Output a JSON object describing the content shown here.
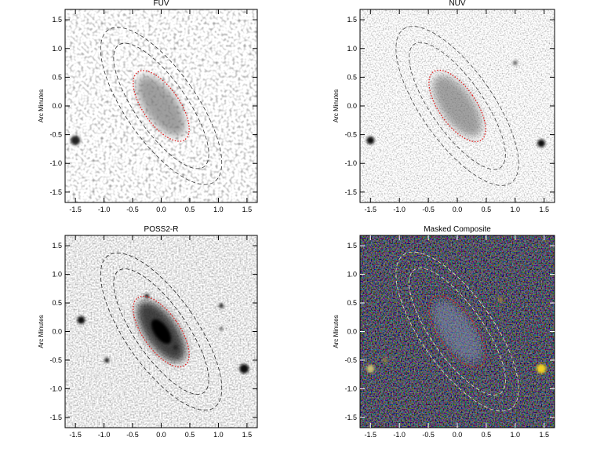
{
  "chart_data": [
    {
      "type": "image",
      "title": "FUV",
      "ylabel": "Arc Minutes",
      "xlim": [
        -1.68,
        1.68
      ],
      "ylim": [
        -1.68,
        1.68
      ],
      "xticks": [
        -1.5,
        {
          "value": -1,
          "label": "-1.0"
        },
        -0.5,
        {
          "value": 0,
          "label": "0.0"
        },
        0.5,
        {
          "value": 1,
          "label": "1.0"
        },
        1.5
      ],
      "yticks": [
        -1.5,
        {
          "value": -1,
          "label": "-1.0"
        },
        -0.5,
        {
          "value": 0,
          "label": "0.0"
        },
        0.5,
        {
          "value": 1,
          "label": "1.0"
        },
        1.5
      ]
    },
    {
      "type": "image",
      "title": "NUV",
      "ylabel": "Arc Minutes",
      "xlim": [
        -1.68,
        1.68
      ],
      "ylim": [
        -1.68,
        1.68
      ],
      "xticks": [
        -1.5,
        {
          "value": -1,
          "label": "-1.0"
        },
        -0.5,
        {
          "value": 0,
          "label": "0.0"
        },
        0.5,
        {
          "value": 1,
          "label": "1.0"
        },
        1.5
      ],
      "yticks": [
        -1.5,
        {
          "value": -1,
          "label": "-1.0"
        },
        -0.5,
        {
          "value": 0,
          "label": "0.0"
        },
        0.5,
        {
          "value": 1,
          "label": "1.0"
        },
        1.5
      ]
    },
    {
      "type": "image",
      "title": "POSS2-R",
      "ylabel": "Arc Minutes",
      "xlim": [
        -1.68,
        1.68
      ],
      "ylim": [
        -1.68,
        1.68
      ],
      "xticks": [
        -1.5,
        {
          "value": -1,
          "label": "-1.0"
        },
        -0.5,
        {
          "value": 0,
          "label": "0.0"
        },
        0.5,
        {
          "value": 1,
          "label": "1.0"
        },
        1.5
      ],
      "yticks": [
        -1.5,
        {
          "value": -1,
          "label": "-1.0"
        },
        -0.5,
        {
          "value": 0,
          "label": "0.0"
        },
        0.5,
        {
          "value": 1,
          "label": "1.0"
        },
        1.5
      ]
    },
    {
      "type": "image",
      "title": "Masked Composite",
      "ylabel": "Arc Minutes",
      "xlim": [
        -1.68,
        1.68
      ],
      "ylim": [
        -1.68,
        1.68
      ],
      "xticks": [
        -1.5,
        {
          "value": -1,
          "label": "-1.0"
        },
        -0.5,
        {
          "value": 0,
          "label": "0.0"
        },
        0.5,
        {
          "value": 1,
          "label": "1.0"
        },
        1.5
      ],
      "yticks": [
        -1.5,
        {
          "value": -1,
          "label": "-1.0"
        },
        -0.5,
        {
          "value": 0,
          "label": "0.0"
        },
        0.5,
        {
          "value": 1,
          "label": "1.0"
        },
        1.5
      ]
    }
  ]
}
